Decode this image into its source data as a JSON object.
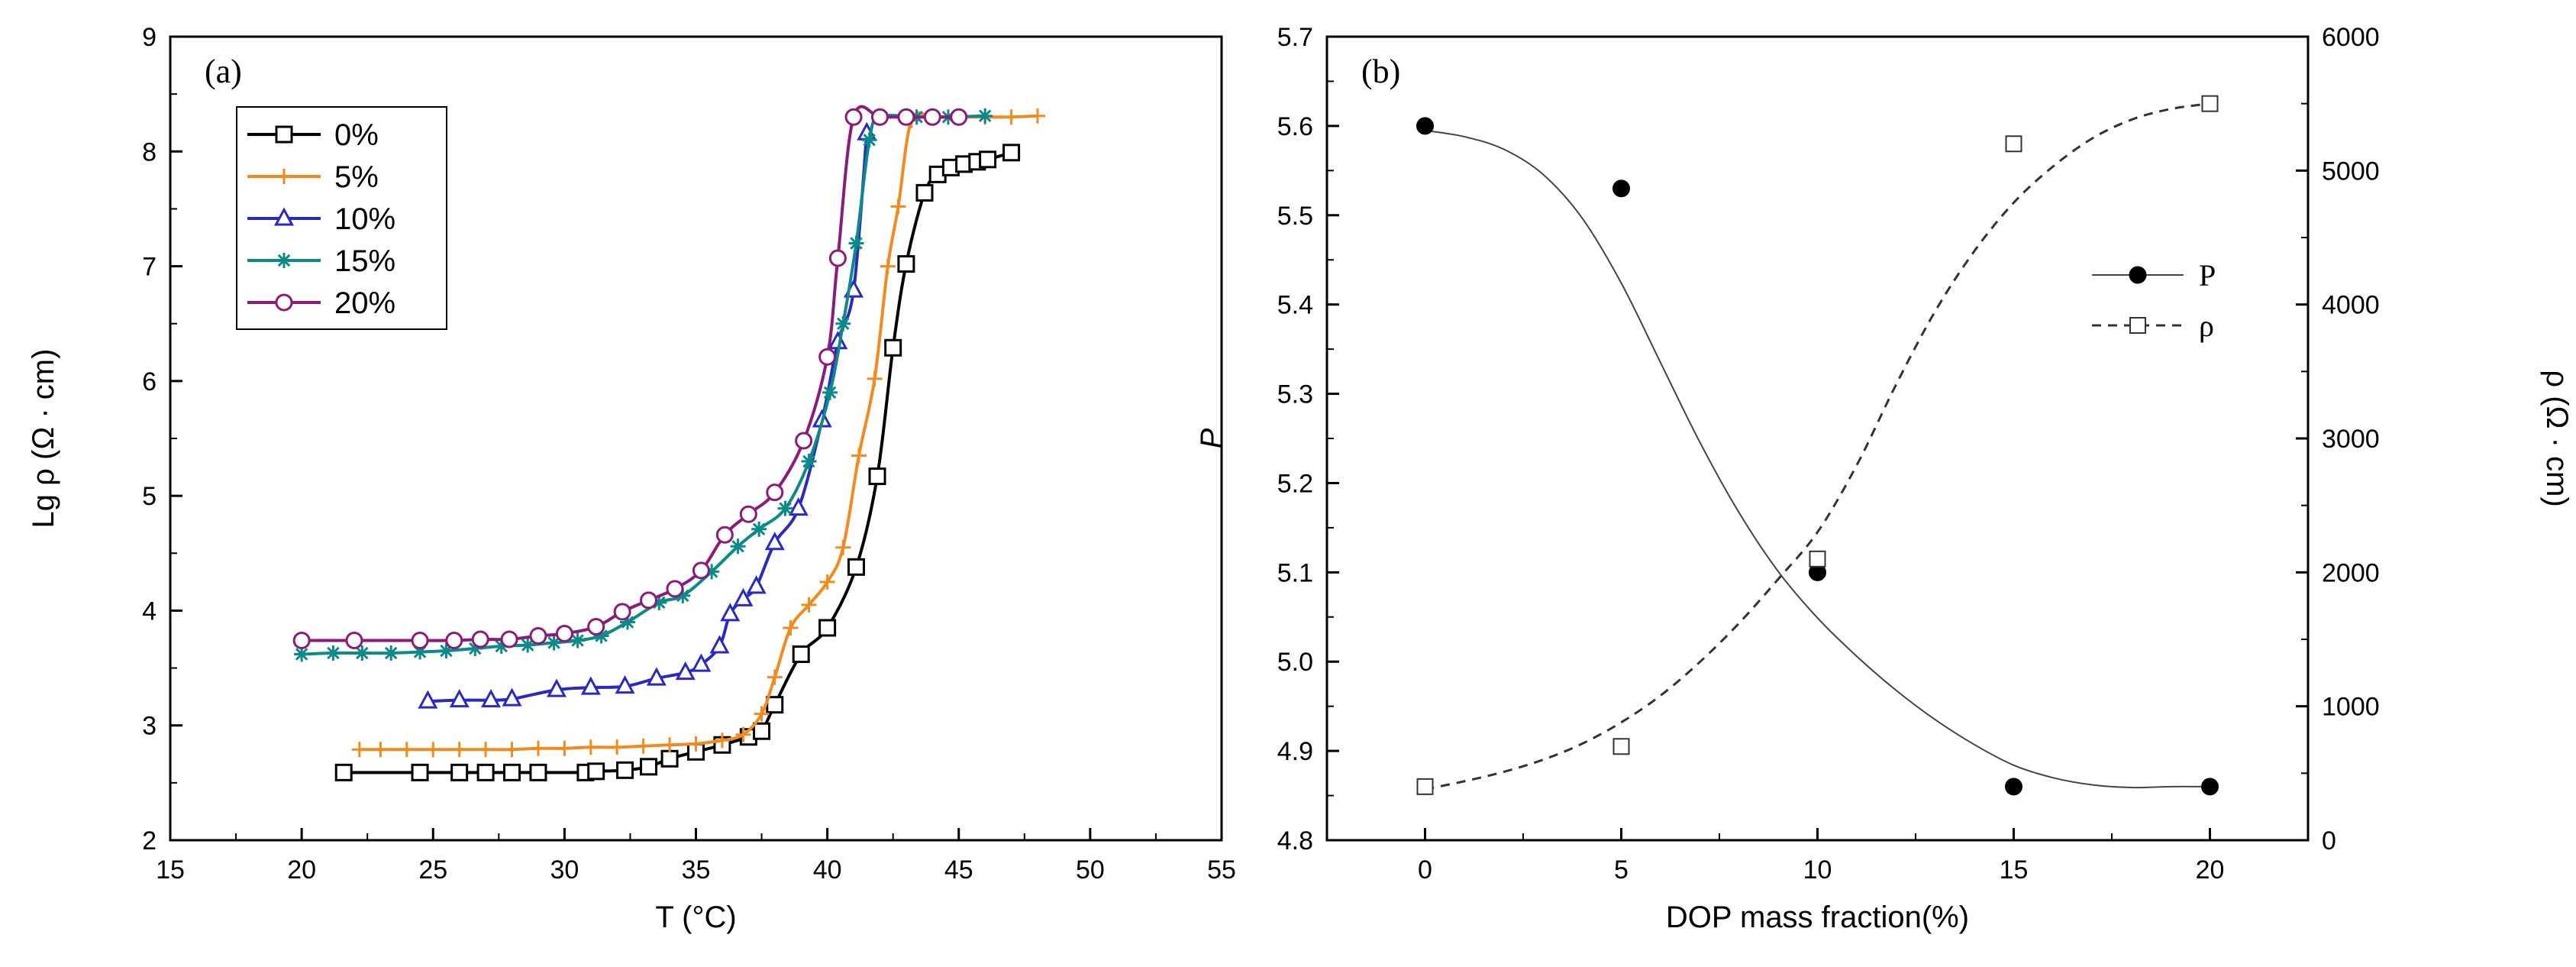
{
  "chart_data": [
    {
      "panel": "(a)",
      "type": "line",
      "xlabel": "T (°C)",
      "ylabel": "Lg ρ (Ω · cm)",
      "xlim": [
        15,
        55
      ],
      "ylim": [
        2,
        9
      ],
      "xticks": [
        "15",
        "20",
        "25",
        "30",
        "35",
        "40",
        "45",
        "50",
        "55"
      ],
      "yticks": [
        "2",
        "3",
        "4",
        "5",
        "6",
        "7",
        "8",
        "9"
      ],
      "legend_position": "top-left",
      "series": [
        {
          "name": "0%",
          "color": "#000000",
          "marker": "square",
          "x": [
            21.6,
            24.5,
            26.0,
            27.0,
            28.0,
            29.0,
            30.8,
            31.2,
            32.3,
            33.2,
            34.0,
            35.0,
            36.0,
            37.0,
            37.5,
            38.0,
            39.0,
            40.0,
            41.1,
            41.9,
            42.5,
            43.0,
            43.7,
            44.2,
            44.7,
            45.2,
            45.7,
            46.1,
            47.0
          ],
          "y": [
            2.59,
            2.59,
            2.59,
            2.59,
            2.59,
            2.59,
            2.59,
            2.6,
            2.61,
            2.64,
            2.71,
            2.77,
            2.83,
            2.9,
            2.95,
            3.18,
            3.62,
            3.85,
            4.38,
            5.17,
            6.29,
            7.02,
            7.64,
            7.8,
            7.86,
            7.89,
            7.91,
            7.93,
            7.99
          ]
        },
        {
          "name": "5%",
          "color": "#f28a1e",
          "marker": "plus",
          "x": [
            22.2,
            23.0,
            24.0,
            25.0,
            26.0,
            27.0,
            28.0,
            29.0,
            30.0,
            31.0,
            32.0,
            33.0,
            34.0,
            35.0,
            36.0,
            36.8,
            37.5,
            38.0,
            38.6,
            39.3,
            40.0,
            40.6,
            41.2,
            41.8,
            42.3,
            42.7,
            43.2,
            44.0,
            45.0,
            46.0,
            47.0,
            48.0
          ],
          "y": [
            2.79,
            2.79,
            2.79,
            2.79,
            2.79,
            2.79,
            2.79,
            2.8,
            2.8,
            2.81,
            2.81,
            2.82,
            2.83,
            2.84,
            2.87,
            2.92,
            3.1,
            3.42,
            3.85,
            4.05,
            4.25,
            4.55,
            5.35,
            6.02,
            7.0,
            7.52,
            8.27,
            8.3,
            8.3,
            8.3,
            8.3,
            8.31
          ]
        },
        {
          "name": "10%",
          "color": "#2a2ac2",
          "marker": "triangle",
          "x": [
            24.8,
            26.0,
            27.2,
            28.0,
            29.7,
            31.0,
            32.3,
            33.5,
            34.6,
            35.2,
            35.9,
            36.3,
            36.8,
            37.3,
            38.0,
            38.9,
            39.8,
            40.4,
            41.0,
            41.5
          ],
          "y": [
            3.21,
            3.22,
            3.22,
            3.23,
            3.31,
            3.33,
            3.34,
            3.41,
            3.46,
            3.53,
            3.69,
            3.97,
            4.1,
            4.21,
            4.59,
            4.89,
            5.66,
            6.34,
            6.79,
            8.16
          ]
        },
        {
          "name": "15%",
          "color": "#0c8a8a",
          "marker": "asterisk",
          "x": [
            20.0,
            21.2,
            22.3,
            23.4,
            24.5,
            25.5,
            26.6,
            27.6,
            28.6,
            29.6,
            30.5,
            31.4,
            32.4,
            33.6,
            34.5,
            35.6,
            36.6,
            37.4,
            38.4,
            39.3,
            40.1,
            40.6,
            41.1,
            41.6,
            42.0,
            43.4,
            44.6,
            46.0
          ],
          "y": [
            3.62,
            3.63,
            3.63,
            3.63,
            3.64,
            3.65,
            3.67,
            3.69,
            3.7,
            3.72,
            3.74,
            3.78,
            3.9,
            4.07,
            4.13,
            4.34,
            4.56,
            4.71,
            4.89,
            5.3,
            5.9,
            6.5,
            7.2,
            8.1,
            8.3,
            8.3,
            8.3,
            8.31
          ]
        },
        {
          "name": "20%",
          "color": "#8b1a7a",
          "marker": "circle",
          "x": [
            20.0,
            22.0,
            24.5,
            25.8,
            26.8,
            27.9,
            29.0,
            30.0,
            31.2,
            32.2,
            33.2,
            34.2,
            35.2,
            36.1,
            37.0,
            38.0,
            39.1,
            40.0,
            40.4,
            41.0,
            42.0,
            43.0,
            44.0,
            45.0
          ],
          "y": [
            3.74,
            3.74,
            3.74,
            3.74,
            3.75,
            3.75,
            3.78,
            3.8,
            3.86,
            3.99,
            4.09,
            4.19,
            4.35,
            4.66,
            4.84,
            5.03,
            5.48,
            6.21,
            7.07,
            8.3,
            8.3,
            8.3,
            8.3,
            8.3
          ]
        }
      ]
    },
    {
      "panel": "(b)",
      "type": "scatter",
      "xlabel": "DOP mass fraction(%)",
      "ylabel": "P",
      "y2label": "ρ (Ω · cm)",
      "xlim": [
        -2.5,
        22.5
      ],
      "ylim": [
        4.8,
        5.7
      ],
      "y2lim": [
        0,
        6000
      ],
      "xticks": [
        "0",
        "5",
        "10",
        "15",
        "20"
      ],
      "yticks": [
        "4.8",
        "4.9",
        "5.0",
        "5.1",
        "5.2",
        "5.3",
        "5.4",
        "5.5",
        "5.6",
        "5.7"
      ],
      "y2ticks": [
        "0",
        "1000",
        "2000",
        "3000",
        "4000",
        "5000",
        "6000"
      ],
      "legend_position": "right",
      "series": [
        {
          "name": "P",
          "axis": "left",
          "marker": "filled-circle",
          "line": "solid",
          "x": [
            0,
            5,
            10,
            15,
            20
          ],
          "y": [
            5.6,
            5.53,
            5.1,
            4.86,
            4.86
          ],
          "fit_x": [
            0,
            1,
            2,
            3,
            4,
            5,
            6,
            7,
            8,
            9,
            10,
            11,
            12,
            13,
            14,
            15,
            16,
            17,
            18,
            19,
            20
          ],
          "fit_y": [
            5.595,
            5.588,
            5.574,
            5.546,
            5.497,
            5.424,
            5.335,
            5.246,
            5.167,
            5.101,
            5.049,
            5.006,
            4.968,
            4.935,
            4.907,
            4.884,
            4.87,
            4.862,
            4.859,
            4.86,
            4.86
          ]
        },
        {
          "name": "ρ",
          "axis": "right",
          "marker": "open-square",
          "line": "dashed",
          "x": [
            0,
            5,
            10,
            15,
            20
          ],
          "y": [
            400,
            700,
            2100,
            5200,
            5500
          ],
          "fit_x": [
            0,
            1,
            2,
            3,
            4,
            5,
            6,
            7,
            8,
            9,
            10,
            11,
            12,
            13,
            14,
            15,
            16,
            17,
            18,
            19,
            20
          ],
          "fit_y": [
            380,
            440,
            510,
            600,
            720,
            880,
            1080,
            1330,
            1620,
            1950,
            2300,
            2800,
            3400,
            3950,
            4400,
            4760,
            5030,
            5240,
            5380,
            5460,
            5500
          ]
        }
      ]
    }
  ]
}
